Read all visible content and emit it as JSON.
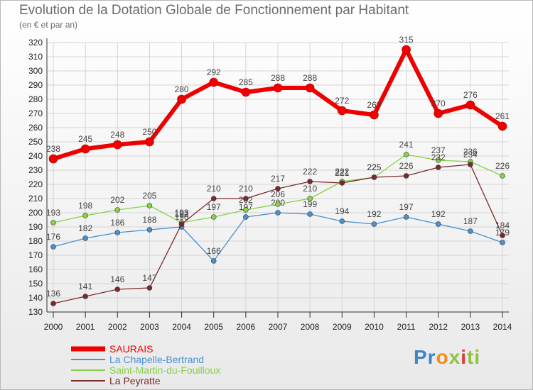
{
  "chart_data": {
    "type": "line",
    "title": "Evolution de la Dotation Globale de Fonctionnement par Habitant",
    "subtitle": "(en € et par an)",
    "x": [
      "2000",
      "2001",
      "2002",
      "2003",
      "2004",
      "2005",
      "2006",
      "2007",
      "2008",
      "2009",
      "2010",
      "2011",
      "2012",
      "2013",
      "2014"
    ],
    "ylim": [
      130,
      320
    ],
    "yticks": [
      130,
      140,
      150,
      160,
      170,
      180,
      190,
      200,
      210,
      220,
      230,
      240,
      250,
      260,
      270,
      280,
      290,
      300,
      310,
      320
    ],
    "grid": true,
    "legend_position": "bottom-left",
    "series": [
      {
        "name": "SAURAIS",
        "color": "#ee0000",
        "values": [
          238,
          245,
          248,
          250,
          280,
          292,
          285,
          288,
          288,
          272,
          269,
          315,
          270,
          276,
          261
        ]
      },
      {
        "name": "La Chapelle-Bertrand",
        "color": "#4a90d0",
        "values": [
          176,
          182,
          186,
          188,
          190,
          166,
          197,
          200,
          199,
          194,
          192,
          197,
          192,
          187,
          179
        ]
      },
      {
        "name": "Saint-Martin-du-Fouilloux",
        "color": "#88d048",
        "values": [
          193,
          198,
          202,
          205,
          193,
          197,
          202,
          206,
          210,
          222,
          225,
          241,
          237,
          236,
          226
        ]
      },
      {
        "name": "La Peyratte",
        "color": "#7a2a2a",
        "values": [
          136,
          141,
          146,
          147,
          192,
          210,
          210,
          217,
          222,
          221,
          225,
          226,
          232,
          234,
          184
        ]
      }
    ]
  },
  "brand": {
    "p1": "Pr",
    "p2": "o",
    "p3": "x",
    "p4": "i",
    "p5": "ti"
  }
}
